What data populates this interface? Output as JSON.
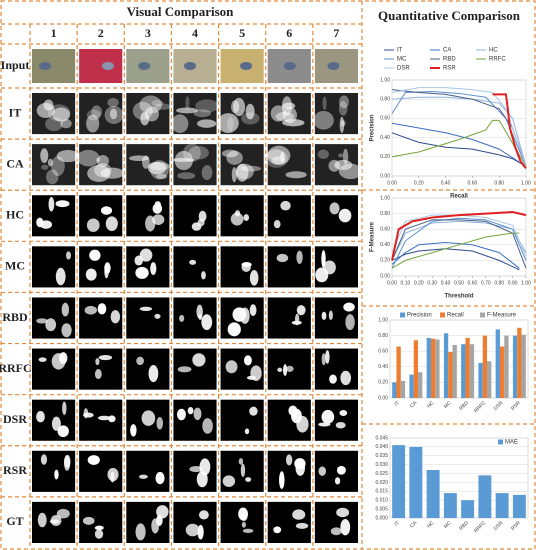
{
  "figure": {
    "title": "Visual Comparison",
    "right_title": "Quantitative Comparison",
    "columns": [
      "1",
      "2",
      "3",
      "4",
      "5",
      "6",
      "7"
    ],
    "rows": [
      "Input",
      "IT",
      "CA",
      "HC",
      "MC",
      "RBD",
      "RRFC",
      "DSR",
      "RSR",
      "GT"
    ]
  },
  "chart_data": [
    {
      "type": "line",
      "xlabel": "Recall",
      "ylabel": "Precision",
      "xlim": [
        0,
        1
      ],
      "ylim": [
        0,
        1
      ],
      "xticks": [
        {
          "value": 0,
          "label": "0.00"
        },
        {
          "value": 0.2,
          "label": "0.20"
        },
        {
          "value": 0.4,
          "label": "0.40"
        },
        {
          "value": 0.6,
          "label": "0.60"
        },
        {
          "value": 0.8,
          "label": "0.80"
        },
        {
          "value": 1,
          "label": "1.00"
        }
      ],
      "yticks": [
        {
          "value": 0,
          "label": "0.00"
        },
        {
          "value": 0.2,
          "label": "0.20"
        },
        {
          "value": 0.4,
          "label": "0.40"
        },
        {
          "value": 0.6,
          "label": "0.60"
        },
        {
          "value": 0.8,
          "label": "0.80"
        },
        {
          "value": 1,
          "label": "1.00"
        }
      ],
      "grid": true,
      "legend": "top",
      "series": [
        {
          "name": "IT",
          "color": "#2b4c8c",
          "x": [
            0,
            0.2,
            0.4,
            0.6,
            0.8,
            0.9,
            1
          ],
          "values": [
            0.45,
            0.35,
            0.3,
            0.28,
            0.22,
            0.18,
            0.1
          ]
        },
        {
          "name": "CA",
          "color": "#3a6fc4",
          "x": [
            0,
            0.2,
            0.4,
            0.6,
            0.8,
            1
          ],
          "values": [
            0.55,
            0.5,
            0.45,
            0.38,
            0.28,
            0.1
          ]
        },
        {
          "name": "HC",
          "color": "#8fb3dc",
          "x": [
            0,
            0.2,
            0.4,
            0.6,
            0.8,
            0.9,
            1
          ],
          "values": [
            0.8,
            0.82,
            0.82,
            0.8,
            0.76,
            0.6,
            0.1
          ]
        },
        {
          "name": "MC",
          "color": "#5b8fd0",
          "x": [
            0,
            0.1,
            0.3,
            0.5,
            0.7,
            0.85,
            1
          ],
          "values": [
            0.65,
            0.87,
            0.88,
            0.86,
            0.82,
            0.6,
            0.1
          ]
        },
        {
          "name": "RBD",
          "color": "#4a5f86",
          "x": [
            0,
            0.2,
            0.4,
            0.6,
            0.8,
            0.9,
            1
          ],
          "values": [
            0.9,
            0.87,
            0.85,
            0.8,
            0.7,
            0.5,
            0.1
          ]
        },
        {
          "name": "RRFC",
          "color": "#76a33a",
          "x": [
            0,
            0.2,
            0.5,
            0.7,
            0.75,
            0.8,
            1
          ],
          "values": [
            0.2,
            0.25,
            0.38,
            0.48,
            0.58,
            0.58,
            0.1
          ]
        },
        {
          "name": "DSR",
          "color": "#a9c6e8",
          "x": [
            0,
            0.2,
            0.4,
            0.6,
            0.75,
            0.85,
            1
          ],
          "values": [
            0.87,
            0.92,
            0.92,
            0.9,
            0.87,
            0.7,
            0.1
          ]
        },
        {
          "name": "RSR",
          "color": "#e02020",
          "x": [
            0.75,
            0.85,
            0.86,
            0.88,
            0.92,
            0.96,
            1
          ],
          "values": [
            0.85,
            0.85,
            0.75,
            0.5,
            0.3,
            0.15,
            0.08
          ]
        }
      ]
    },
    {
      "type": "line",
      "xlabel": "Threshold",
      "ylabel": "F-Measure",
      "xlim": [
        0,
        1
      ],
      "ylim": [
        0,
        1
      ],
      "xticks": [
        {
          "value": 0,
          "label": "0.00"
        },
        {
          "value": 0.1,
          "label": "0.10"
        },
        {
          "value": 0.2,
          "label": "0.20"
        },
        {
          "value": 0.3,
          "label": "0.30"
        },
        {
          "value": 0.4,
          "label": "0.40"
        },
        {
          "value": 0.5,
          "label": "0.50"
        },
        {
          "value": 0.6,
          "label": "0.60"
        },
        {
          "value": 0.7,
          "label": "0.70"
        },
        {
          "value": 0.8,
          "label": "0.80"
        },
        {
          "value": 0.9,
          "label": "0.90"
        },
        {
          "value": 1,
          "label": "1.00"
        }
      ],
      "yticks": [
        {
          "value": 0,
          "label": "0.00"
        },
        {
          "value": 0.2,
          "label": "0.20"
        },
        {
          "value": 0.4,
          "label": "0.40"
        },
        {
          "value": 0.6,
          "label": "0.60"
        },
        {
          "value": 0.8,
          "label": "0.80"
        },
        {
          "value": 1,
          "label": "1.00"
        }
      ],
      "grid": true,
      "series": [
        {
          "color": "#2b4c8c",
          "x": [
            0,
            0.1,
            0.2,
            0.4,
            0.6,
            0.8,
            0.95
          ],
          "values": [
            0.2,
            0.28,
            0.32,
            0.35,
            0.32,
            0.2,
            0.08
          ]
        },
        {
          "color": "#3a6fc4",
          "x": [
            0,
            0.1,
            0.2,
            0.4,
            0.6,
            0.8,
            0.95
          ],
          "values": [
            0.15,
            0.3,
            0.4,
            0.43,
            0.4,
            0.3,
            0.1
          ]
        },
        {
          "color": "#8fb3dc",
          "x": [
            0,
            0.1,
            0.3,
            0.5,
            0.7,
            0.9,
            1
          ],
          "values": [
            0.2,
            0.55,
            0.68,
            0.7,
            0.68,
            0.6,
            0.3
          ]
        },
        {
          "color": "#5b8fd0",
          "x": [
            0,
            0.1,
            0.3,
            0.5,
            0.7,
            0.9,
            1
          ],
          "values": [
            0.1,
            0.45,
            0.7,
            0.74,
            0.72,
            0.6,
            0.2
          ]
        },
        {
          "color": "#4a5f86",
          "x": [
            0,
            0.1,
            0.3,
            0.5,
            0.7,
            0.9,
            1
          ],
          "values": [
            0.2,
            0.6,
            0.72,
            0.72,
            0.7,
            0.55,
            0.1
          ]
        },
        {
          "color": "#76a33a",
          "x": [
            0,
            0.1,
            0.3,
            0.5,
            0.7,
            0.9,
            0.95
          ],
          "values": [
            0.1,
            0.2,
            0.3,
            0.4,
            0.5,
            0.55,
            0.55
          ]
        },
        {
          "color": "#a9c6e8",
          "x": [
            0,
            0.1,
            0.3,
            0.5,
            0.7,
            0.9,
            1
          ],
          "values": [
            0.3,
            0.7,
            0.78,
            0.78,
            0.75,
            0.65,
            0.25
          ]
        },
        {
          "color": "#e02020",
          "x": [
            0,
            0.05,
            0.15,
            0.3,
            0.5,
            0.7,
            0.9,
            1
          ],
          "values": [
            0.2,
            0.6,
            0.7,
            0.75,
            0.78,
            0.8,
            0.82,
            0.78
          ]
        }
      ]
    },
    {
      "type": "bar",
      "categories": [
        "IT",
        "CA",
        "HC",
        "MC",
        "RBD",
        "RRFC",
        "DSR",
        "RSR"
      ],
      "ylim": [
        0,
        1
      ],
      "yticks": [
        {
          "value": 0,
          "label": "0.00"
        },
        {
          "value": 0.2,
          "label": "0.20"
        },
        {
          "value": 0.4,
          "label": "0.40"
        },
        {
          "value": 0.6,
          "label": "0.60"
        },
        {
          "value": 0.8,
          "label": "0.80"
        },
        {
          "value": 1,
          "label": "1.00"
        }
      ],
      "grid": true,
      "legend": "top",
      "series": [
        {
          "name": "Precision",
          "color": "#5b9bd5",
          "values": [
            0.2,
            0.3,
            0.77,
            0.83,
            0.69,
            0.45,
            0.88,
            0.8
          ]
        },
        {
          "name": "Recall",
          "color": "#ed7d31",
          "values": [
            0.66,
            0.74,
            0.76,
            0.59,
            0.77,
            0.8,
            0.66,
            0.9
          ]
        },
        {
          "name": "F-Measure",
          "color": "#a5a5a5",
          "values": [
            0.22,
            0.33,
            0.75,
            0.68,
            0.69,
            0.47,
            0.8,
            0.81
          ]
        }
      ]
    },
    {
      "type": "bar",
      "categories": [
        "IT",
        "CA",
        "HC",
        "MC",
        "RBD",
        "RRFC",
        "DSR",
        "RSR"
      ],
      "ylim": [
        0,
        0.045
      ],
      "yticks": [
        {
          "value": 0,
          "label": "0.000"
        },
        {
          "value": 0.005,
          "label": "0.005"
        },
        {
          "value": 0.01,
          "label": "0.010"
        },
        {
          "value": 0.015,
          "label": "0.015"
        },
        {
          "value": 0.02,
          "label": "0.020"
        },
        {
          "value": 0.025,
          "label": "0.025"
        },
        {
          "value": 0.03,
          "label": "0.030"
        },
        {
          "value": 0.035,
          "label": "0.035"
        },
        {
          "value": 0.04,
          "label": "0.040"
        },
        {
          "value": 0.045,
          "label": "0.045"
        }
      ],
      "grid": true,
      "legend": "top-right",
      "series": [
        {
          "name": "MAE",
          "color": "#5b9bd5",
          "values": [
            0.041,
            0.04,
            0.027,
            0.014,
            0.01,
            0.024,
            0.014,
            0.013
          ]
        }
      ]
    }
  ]
}
